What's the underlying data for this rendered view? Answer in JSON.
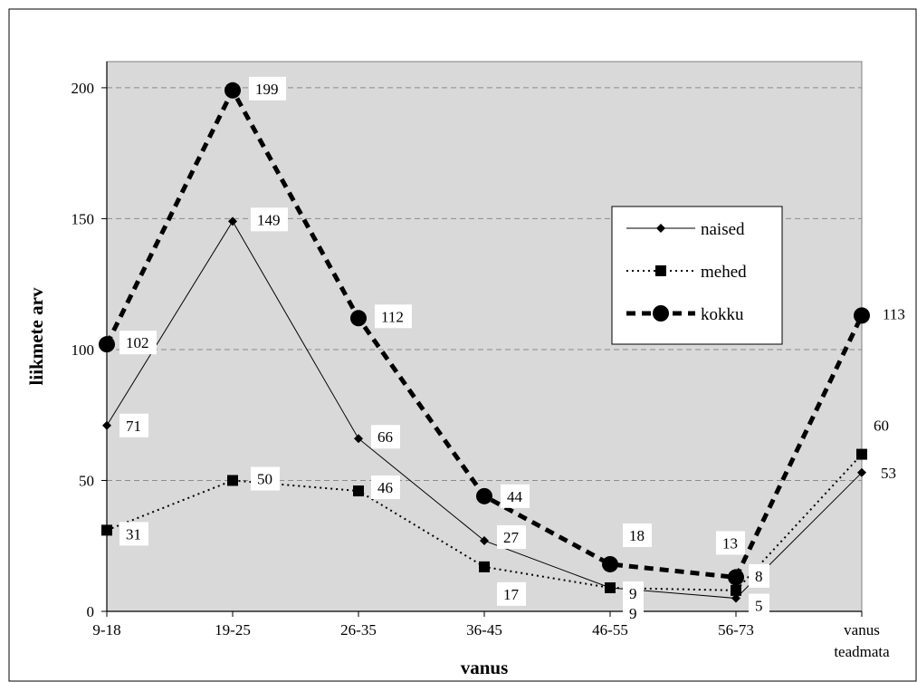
{
  "chart_data": {
    "type": "line",
    "xlabel": "vanus",
    "ylabel": "liikmete arv",
    "categories": [
      "9-18",
      "19-25",
      "26-35",
      "36-45",
      "46-55",
      "56-73",
      "vanus teadmata"
    ],
    "ylim": [
      0,
      210
    ],
    "yticks": [
      0,
      50,
      100,
      150,
      200
    ],
    "grid": "horizontal dashed",
    "plot_background": "#d9d9d9",
    "legend_position": "right-center, inside plot",
    "series": [
      {
        "name": "naised",
        "style": "thin solid line, diamond markers",
        "values": [
          71,
          149,
          66,
          27,
          9,
          5,
          53
        ]
      },
      {
        "name": "mehed",
        "style": "dotted line, square markers",
        "values": [
          31,
          50,
          46,
          17,
          9,
          8,
          60
        ]
      },
      {
        "name": "kokku",
        "style": "thick dashed line, circle markers",
        "values": [
          102,
          199,
          112,
          44,
          18,
          13,
          113
        ]
      }
    ]
  }
}
